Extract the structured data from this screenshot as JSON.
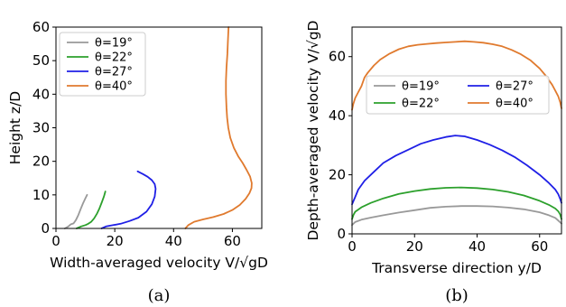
{
  "chart_data": [
    {
      "type": "line",
      "caption": "(a)",
      "xlabel": "Width-averaged velocity V/√gD",
      "ylabel": "Height z/D",
      "xlim": [
        0,
        70
      ],
      "ylim": [
        0,
        60
      ],
      "xticks": [
        0,
        20,
        40,
        60
      ],
      "yticks": [
        0,
        10,
        20,
        30,
        40,
        50,
        60
      ],
      "grid": false,
      "legend_position": "top-left",
      "legend_columns": 1,
      "series": [
        {
          "name": "θ=19°",
          "color": "#999999",
          "x": [
            3.0,
            4.2,
            5.0,
            6.0,
            6.8,
            7.6,
            8.4,
            9.2,
            10.0,
            10.6
          ],
          "y": [
            0.0,
            0.6,
            1.2,
            1.5,
            2.5,
            4.0,
            5.8,
            7.5,
            9.0,
            10.0
          ]
        },
        {
          "name": "θ=22°",
          "color": "#2ca02c",
          "x": [
            7.0,
            8.5,
            10.0,
            11.0,
            12.0,
            13.0,
            14.0,
            14.8,
            15.6,
            16.3,
            16.8
          ],
          "y": [
            0.0,
            0.6,
            1.0,
            1.4,
            2.0,
            3.0,
            4.5,
            6.0,
            7.8,
            9.5,
            11.0
          ]
        },
        {
          "name": "θ=27°",
          "color": "#1f1fe6",
          "x": [
            15.5,
            17.0,
            19.5,
            22.0,
            25.0,
            28.0,
            30.8,
            32.6,
            33.6,
            33.9,
            33.6,
            32.6,
            31.2,
            29.6,
            27.8
          ],
          "y": [
            0.0,
            0.6,
            1.0,
            1.4,
            2.2,
            3.2,
            5.0,
            7.2,
            9.5,
            11.8,
            13.2,
            14.4,
            15.4,
            16.2,
            17.0
          ]
        },
        {
          "name": "θ=40°",
          "color": "#e07a2e",
          "x": [
            44.0,
            45.0,
            47.0,
            50.0,
            53.5,
            57.0,
            60.0,
            62.5,
            64.5,
            65.8,
            66.5,
            66.6,
            66.0,
            64.8,
            63.5,
            62.0,
            60.5,
            59.3,
            58.6,
            58.2,
            58.0,
            57.8,
            57.8,
            58.0,
            58.3,
            58.5,
            58.7
          ],
          "y": [
            0.0,
            1.0,
            2.0,
            2.7,
            3.4,
            4.3,
            5.5,
            7.0,
            8.8,
            10.5,
            12.0,
            13.5,
            15.5,
            17.5,
            19.5,
            21.5,
            24.0,
            27.0,
            30.0,
            33.0,
            36.0,
            40.0,
            44.0,
            48.0,
            52.0,
            56.0,
            60.0
          ]
        }
      ]
    },
    {
      "type": "line",
      "caption": "(b)",
      "xlabel": "Transverse direction y/D",
      "ylabel": "Depth-averaged velocity V/√gD",
      "xlim": [
        0,
        67
      ],
      "ylim": [
        0,
        70
      ],
      "xticks": [
        0,
        20,
        40,
        60
      ],
      "yticks": [
        0,
        20,
        40,
        60
      ],
      "grid": false,
      "legend_position": "center",
      "legend_columns": 2,
      "series": [
        {
          "name": "θ=19°",
          "color": "#999999",
          "x": [
            0,
            1,
            3,
            6,
            10,
            15,
            20,
            25,
            30,
            35,
            40,
            45,
            50,
            55,
            60,
            63,
            65,
            66,
            67
          ],
          "y": [
            3.0,
            4.0,
            4.8,
            5.5,
            6.3,
            7.2,
            8.0,
            8.8,
            9.2,
            9.4,
            9.4,
            9.3,
            8.9,
            8.3,
            7.3,
            6.3,
            5.4,
            4.5,
            3.5
          ]
        },
        {
          "name": "θ=22°",
          "color": "#2ca02c",
          "x": [
            0,
            0.5,
            1,
            3,
            6,
            10,
            15,
            20,
            25,
            30,
            35,
            40,
            45,
            50,
            55,
            60,
            63,
            65,
            66,
            66.6,
            67
          ],
          "y": [
            5.0,
            6.5,
            7.5,
            9.0,
            10.5,
            12.0,
            13.5,
            14.5,
            15.2,
            15.6,
            15.7,
            15.5,
            15.0,
            14.2,
            13.0,
            11.2,
            9.8,
            8.6,
            7.6,
            6.5,
            5.0
          ]
        },
        {
          "name": "θ=27°",
          "color": "#1f1fe6",
          "x": [
            0,
            0.4,
            1,
            2,
            4,
            7,
            10,
            14,
            18,
            22,
            26,
            30,
            33,
            36,
            40,
            44,
            48,
            52,
            56,
            60,
            63,
            65,
            66,
            66.6,
            67
          ],
          "y": [
            10.0,
            11.0,
            12.5,
            15.0,
            18.0,
            21.0,
            24.0,
            26.5,
            28.5,
            30.5,
            31.8,
            32.8,
            33.3,
            33.0,
            31.8,
            30.2,
            28.3,
            26.0,
            23.2,
            20.0,
            17.2,
            15.0,
            13.4,
            11.8,
            10.5
          ]
        },
        {
          "name": "θ=40°",
          "color": "#e07a2e",
          "x": [
            0,
            0.4,
            1,
            2,
            3,
            4,
            5,
            7,
            9,
            12,
            15,
            18,
            21,
            24,
            27,
            30,
            33,
            36,
            39,
            42,
            45,
            48,
            51,
            54,
            57,
            60,
            62,
            64,
            65,
            66,
            66.6,
            67
          ],
          "y": [
            42.0,
            44.0,
            46.0,
            48.0,
            50.0,
            53.0,
            54.5,
            57.0,
            59.0,
            61.0,
            62.5,
            63.5,
            64.0,
            64.3,
            64.6,
            64.8,
            65.0,
            65.2,
            65.0,
            64.7,
            64.2,
            63.5,
            62.3,
            60.8,
            58.8,
            56.0,
            53.5,
            50.5,
            48.5,
            46.5,
            44.5,
            42.5
          ]
        }
      ]
    }
  ]
}
